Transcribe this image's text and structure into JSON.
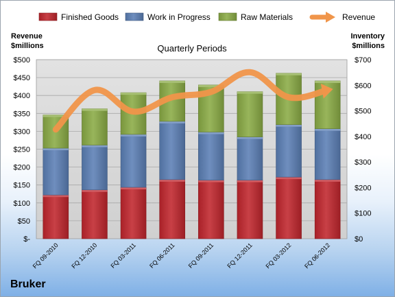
{
  "company": "Bruker",
  "chart_data": {
    "type": "bar",
    "stacked": true,
    "title": "Quarterly Periods",
    "ylabel_left": [
      "Revenue",
      "$millions"
    ],
    "ylabel_right": [
      "Inventory",
      "$millions"
    ],
    "categories": [
      "FQ 09-2010",
      "FQ 12-2010",
      "FQ 03-2011",
      "FQ 06-2011",
      "FQ 09-2011",
      "FQ 12-2011",
      "FQ 03-2012",
      "FQ 06-2012"
    ],
    "left_axis": {
      "min": 0,
      "max": 500,
      "step": 50,
      "ticks": [
        "$-",
        "$50",
        "$100",
        "$150",
        "$200",
        "$250",
        "$300",
        "$350",
        "$400",
        "$450",
        "$500"
      ]
    },
    "right_axis": {
      "min": 0,
      "max": 700,
      "step": 100,
      "ticks": [
        "$0",
        "$100",
        "$200",
        "$300",
        "$400",
        "$500",
        "$600",
        "$700"
      ]
    },
    "grid": true,
    "legend_position": "top",
    "series": [
      {
        "name": "Finished Goods",
        "type": "bar",
        "axis": "right",
        "color": "#c0262d",
        "values": [
          171,
          191,
          201,
          231,
          229,
          229,
          241,
          231
        ]
      },
      {
        "name": "Work in Progress",
        "type": "bar",
        "axis": "right",
        "color": "#5b7fb5",
        "values": [
          183,
          175,
          207,
          228,
          188,
          169,
          205,
          199
        ]
      },
      {
        "name": "Raw Materials",
        "type": "bar",
        "axis": "right",
        "color": "#8aab45",
        "values": [
          130,
          142,
          163,
          158,
          184,
          177,
          201,
          187
        ]
      },
      {
        "name": "Revenue",
        "type": "line",
        "axis": "left",
        "color": "#f0954a",
        "values": [
          305,
          415,
          355,
          395,
          410,
          465,
          395,
          415
        ]
      }
    ]
  }
}
